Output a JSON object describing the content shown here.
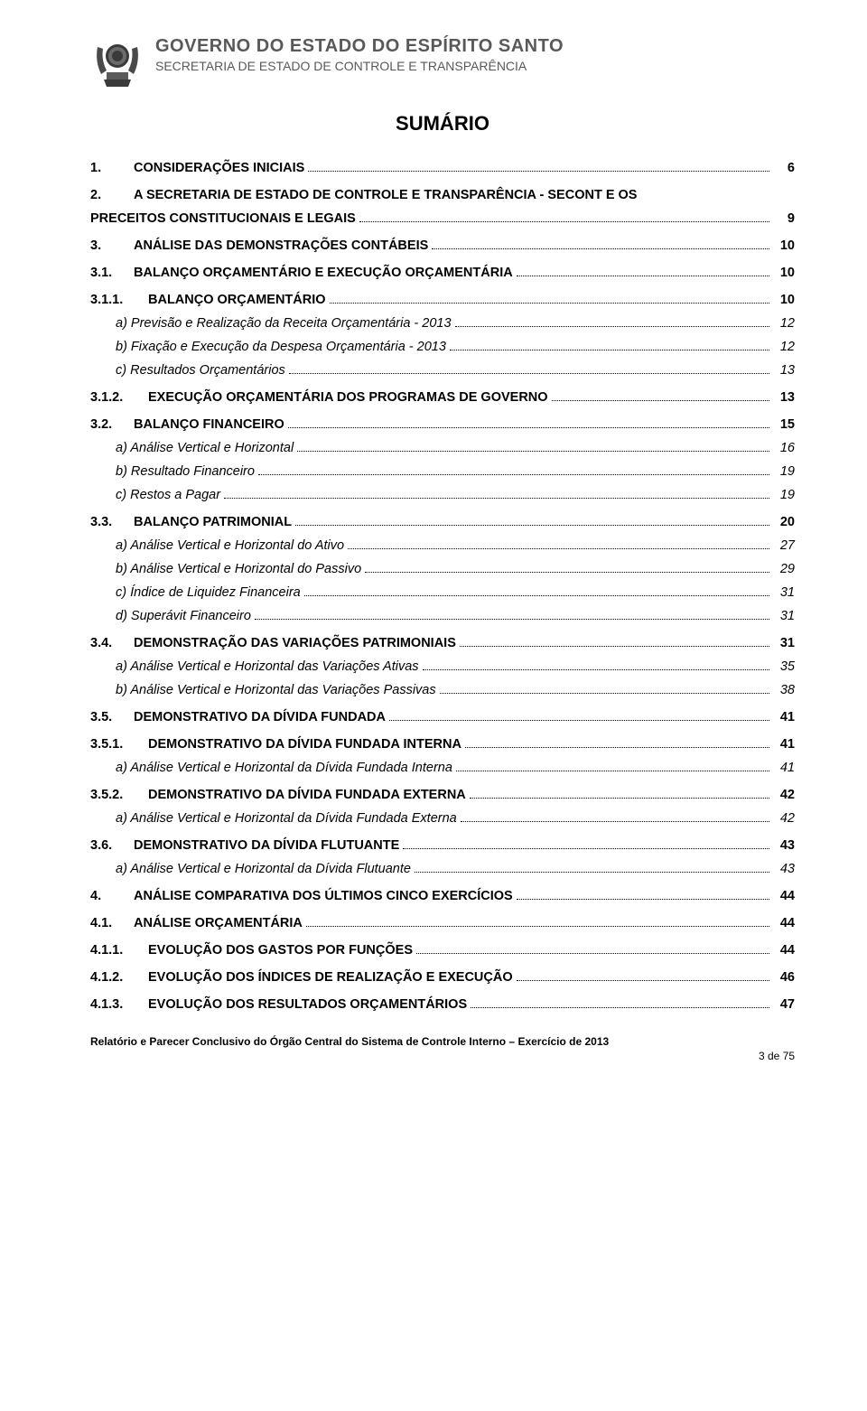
{
  "header": {
    "title": "GOVERNO DO ESTADO DO ESPÍRITO SANTO",
    "subtitle": "SECRETARIA DE ESTADO DE CONTROLE E TRANSPARÊNCIA"
  },
  "sumario_title": "SUMÁRIO",
  "footer": {
    "line": "Relatório e Parecer Conclusivo do Órgão Central do Sistema de Controle Interno – Exercício de 2013",
    "page": "3 de 75"
  },
  "colors": {
    "header_text": "#595959",
    "body_text": "#000000",
    "background": "#ffffff"
  },
  "fonts": {
    "family": "Arial",
    "header_title_size": 20,
    "header_subtitle_size": 14,
    "sumario_size": 22,
    "toc_size": 14.5,
    "footer_size": 12
  },
  "toc": [
    {
      "num": "1.",
      "label": "CONSIDERAÇÕES INICIAIS",
      "page": "6",
      "level": 0,
      "bold": true
    },
    {
      "num": "2.",
      "label": "A SECRETARIA DE ESTADO DE CONTROLE E TRANSPARÊNCIA - SECONT E OS",
      "page": "",
      "level": 0,
      "bold": true,
      "nodots": true
    },
    {
      "num": "",
      "label": "PRECEITOS CONSTITUCIONAIS E LEGAIS",
      "page": "9",
      "level": 0,
      "bold": true,
      "cont": true
    },
    {
      "num": "3.",
      "label": "ANÁLISE DAS DEMONSTRAÇÕES CONTÁBEIS",
      "page": "10",
      "level": 0,
      "bold": true
    },
    {
      "num": "3.1.",
      "label": "BALANÇO ORÇAMENTÁRIO E EXECUÇÃO ORÇAMENTÁRIA",
      "page": "10",
      "level": 1,
      "bold": true
    },
    {
      "num": "3.1.1.",
      "label": "BALANÇO ORÇAMENTÁRIO",
      "page": "10",
      "level": 2,
      "bold": true
    },
    {
      "num": "",
      "label": "a) Previsão e Realização da Receita Orçamentária - 2013",
      "page": "12",
      "level": 3,
      "italic": true
    },
    {
      "num": "",
      "label": "b) Fixação e Execução da Despesa Orçamentária - 2013",
      "page": "12",
      "level": 3,
      "italic": true
    },
    {
      "num": "",
      "label": "c) Resultados Orçamentários",
      "page": "13",
      "level": 3,
      "italic": true
    },
    {
      "num": "3.1.2.",
      "label": "EXECUÇÃO ORÇAMENTÁRIA DOS PROGRAMAS DE GOVERNO",
      "page": "13",
      "level": 2,
      "bold": true
    },
    {
      "num": "3.2.",
      "label": "BALANÇO FINANCEIRO",
      "page": "15",
      "level": 1,
      "bold": true
    },
    {
      "num": "",
      "label": "a) Análise Vertical e Horizontal",
      "page": "16",
      "level": 3,
      "italic": true
    },
    {
      "num": "",
      "label": "b) Resultado Financeiro",
      "page": "19",
      "level": 3,
      "italic": true
    },
    {
      "num": "",
      "label": "c) Restos a Pagar",
      "page": "19",
      "level": 3,
      "italic": true
    },
    {
      "num": "3.3.",
      "label": "BALANÇO PATRIMONIAL",
      "page": "20",
      "level": 1,
      "bold": true
    },
    {
      "num": "",
      "label": "a) Análise Vertical e Horizontal do Ativo",
      "page": "27",
      "level": 3,
      "italic": true
    },
    {
      "num": "",
      "label": "b) Análise Vertical e Horizontal do Passivo",
      "page": "29",
      "level": 3,
      "italic": true
    },
    {
      "num": "",
      "label": "c) Índice de Liquidez Financeira",
      "page": "31",
      "level": 3,
      "italic": true
    },
    {
      "num": "",
      "label": "d) Superávit Financeiro",
      "page": "31",
      "level": 3,
      "italic": true
    },
    {
      "num": "3.4.",
      "label": "DEMONSTRAÇÃO DAS VARIAÇÕES PATRIMONIAIS",
      "page": "31",
      "level": 1,
      "bold": true
    },
    {
      "num": "",
      "label": "a) Análise Vertical e Horizontal das Variações Ativas",
      "page": "35",
      "level": 3,
      "italic": true
    },
    {
      "num": "",
      "label": "b) Análise Vertical e Horizontal das Variações Passivas",
      "page": "38",
      "level": 3,
      "italic": true
    },
    {
      "num": "3.5.",
      "label": "DEMONSTRATIVO DA DÍVIDA FUNDADA",
      "page": "41",
      "level": 1,
      "bold": true
    },
    {
      "num": "3.5.1.",
      "label": "DEMONSTRATIVO DA DÍVIDA FUNDADA INTERNA",
      "page": "41",
      "level": 2,
      "bold": true
    },
    {
      "num": "",
      "label": "a) Análise Vertical e Horizontal da Dívida Fundada Interna",
      "page": "41",
      "level": 3,
      "italic": true
    },
    {
      "num": "3.5.2.",
      "label": "DEMONSTRATIVO DA DÍVIDA FUNDADA EXTERNA",
      "page": "42",
      "level": 2,
      "bold": true
    },
    {
      "num": "",
      "label": "a) Análise Vertical e Horizontal da Dívida Fundada Externa",
      "page": "42",
      "level": 3,
      "italic": true
    },
    {
      "num": "3.6.",
      "label": "DEMONSTRATIVO DA DÍVIDA FLUTUANTE",
      "page": "43",
      "level": 1,
      "bold": true
    },
    {
      "num": "",
      "label": "a) Análise Vertical e Horizontal da Dívida Flutuante",
      "page": "43",
      "level": 3,
      "italic": true
    },
    {
      "num": "4.",
      "label": "ANÁLISE COMPARATIVA DOS ÚLTIMOS CINCO EXERCÍCIOS",
      "page": "44",
      "level": 0,
      "bold": true
    },
    {
      "num": "4.1.",
      "label": "ANÁLISE ORÇAMENTÁRIA",
      "page": "44",
      "level": 1,
      "bold": true
    },
    {
      "num": "4.1.1.",
      "label": "EVOLUÇÃO DOS GASTOS POR FUNÇÕES",
      "page": "44",
      "level": 2,
      "bold": true
    },
    {
      "num": "4.1.2.",
      "label": "EVOLUÇÃO DOS ÍNDICES DE REALIZAÇÃO E EXECUÇÃO",
      "page": "46",
      "level": 2,
      "bold": true
    },
    {
      "num": "4.1.3.",
      "label": "EVOLUÇÃO DOS RESULTADOS ORÇAMENTÁRIOS",
      "page": "47",
      "level": 2,
      "bold": true
    }
  ]
}
